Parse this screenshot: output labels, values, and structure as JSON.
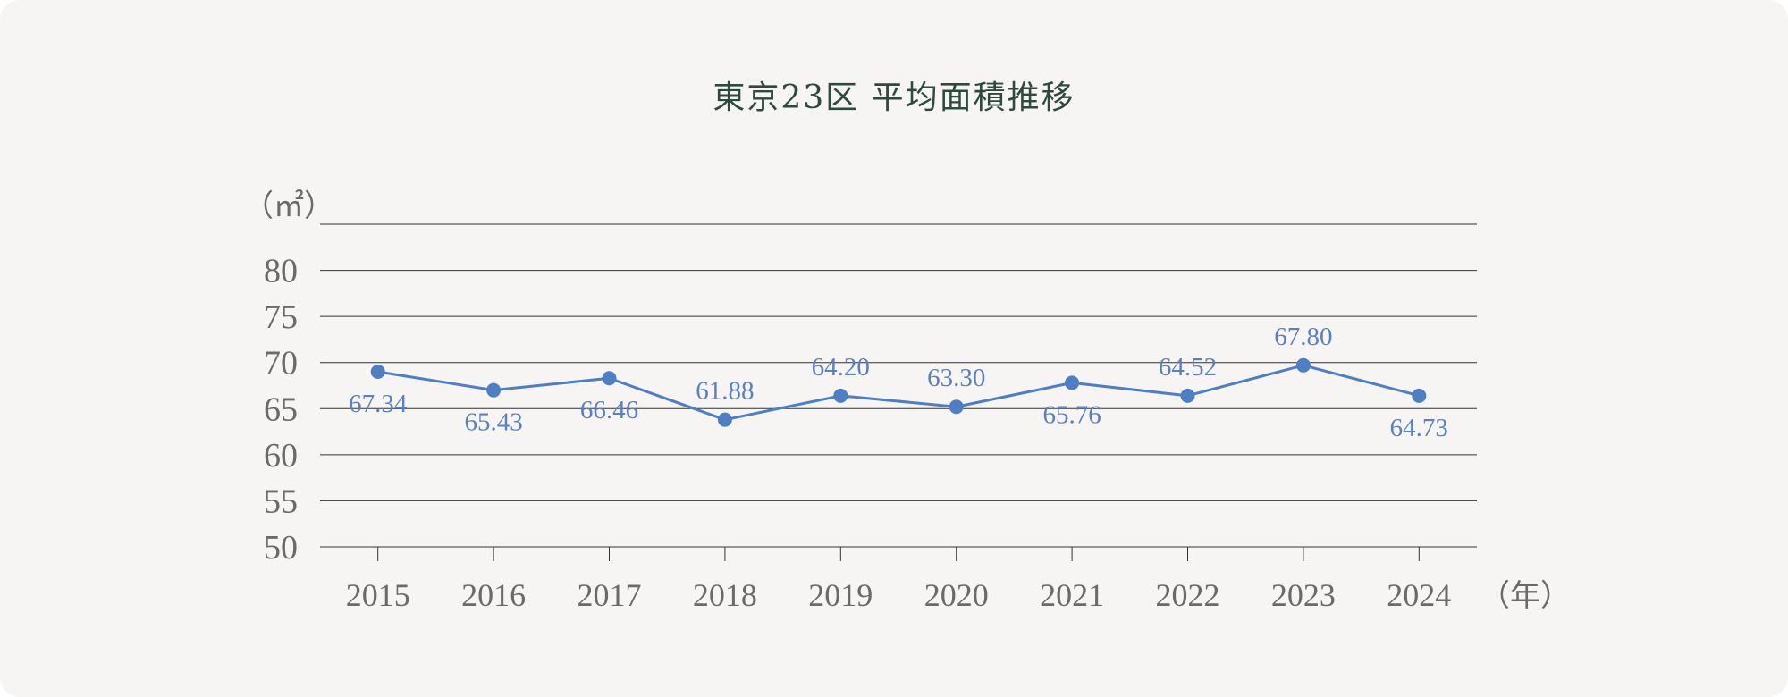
{
  "chart_data": {
    "type": "line",
    "title": "東京23区 平均面積推移",
    "y_unit_label": "（㎡）",
    "x_unit_label": "（年）",
    "ylim": [
      50,
      85
    ],
    "y_ticks": [
      50,
      55,
      60,
      65,
      70,
      75,
      80
    ],
    "grid": true,
    "x": [
      "2015",
      "2016",
      "2017",
      "2018",
      "2019",
      "2020",
      "2021",
      "2022",
      "2023",
      "2024"
    ],
    "series": [
      {
        "values": [
          67.34,
          65.43,
          66.46,
          61.88,
          64.2,
          63.3,
          65.76,
          64.52,
          67.8,
          64.73
        ],
        "point_y_on_axis": [
          69.0,
          67.0,
          68.3,
          63.8,
          66.4,
          65.2,
          67.8,
          66.4,
          69.7,
          66.4
        ],
        "label_position": [
          "below",
          "below",
          "below",
          "above",
          "above",
          "above",
          "below",
          "above",
          "above",
          "below"
        ]
      }
    ],
    "colors": {
      "line": "#4f7fc2",
      "data_label": "#5b80c0",
      "grid": "#333333",
      "axis_label": "#6a6a6a",
      "title": "#2f4a3d",
      "background": "#f6f5f3"
    }
  }
}
